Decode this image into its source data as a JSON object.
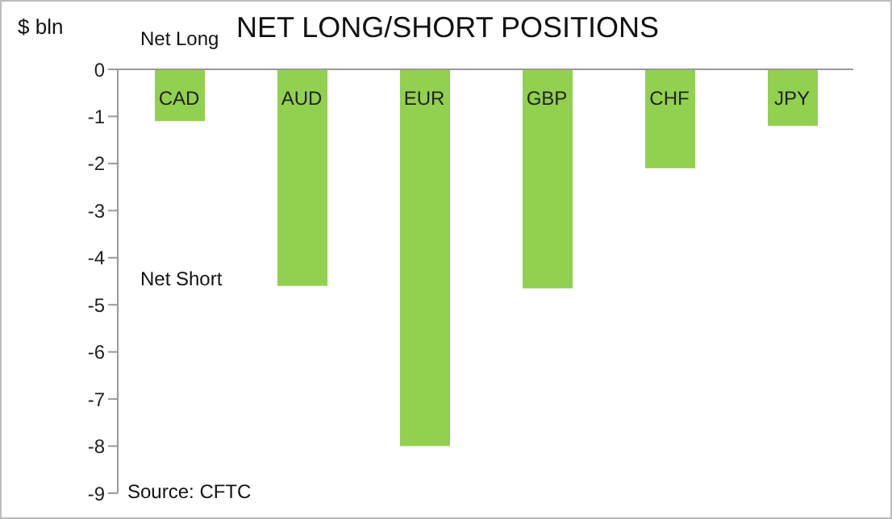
{
  "chart_data": {
    "type": "bar",
    "title": "NET LONG/SHORT POSITIONS",
    "ylabel": "$ bln",
    "categories": [
      "CAD",
      "AUD",
      "EUR",
      "GBP",
      "CHF",
      "JPY"
    ],
    "values": [
      -1.1,
      -4.6,
      -8.0,
      -4.65,
      -2.1,
      -1.2
    ],
    "color": "#92d050",
    "ylim": [
      -9,
      0
    ],
    "yticks": [
      -9,
      -8,
      -7,
      -6,
      -5,
      -4,
      -3,
      -2,
      -1,
      0
    ],
    "annotations": [
      "Net Long",
      "Net Short",
      "Source: CFTC"
    ]
  }
}
